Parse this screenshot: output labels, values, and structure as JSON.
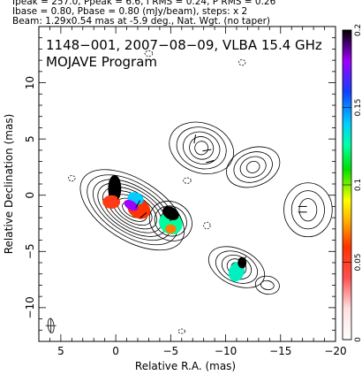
{
  "header": {
    "line1": "Ipeak = 257.0, Ppeak = 6.6, I RMS = 0.24, P RMS = 0.26",
    "line2": "Ibase = 0.80, Pbase = 0.80 (mJy/beam), steps: x 2",
    "line3": "Beam: 1.29x0.54 mas at -5.9 deg., Nat. Wgt. (no taper)"
  },
  "plot": {
    "title_line1": "1148−001, 2007−08−09, VLBA 15.4 GHz",
    "title_line2": "MOJAVE Program"
  },
  "chart_data": {
    "type": "contour",
    "xlabel": "Relative R.A. (mas)",
    "ylabel": "Relative Declination (mas)",
    "xlim": [
      7,
      -20
    ],
    "ylim": [
      -13,
      15
    ],
    "x_ticks": [
      {
        "v": 5,
        "label": "5"
      },
      {
        "v": 0,
        "label": "0"
      },
      {
        "v": -5,
        "label": "−5"
      },
      {
        "v": -10,
        "label": "−10"
      },
      {
        "v": -15,
        "label": "−15"
      },
      {
        "v": -20,
        "label": "−20"
      }
    ],
    "y_ticks": [
      {
        "v": 10,
        "label": "10"
      },
      {
        "v": 5,
        "label": "5"
      },
      {
        "v": 0,
        "label": "0"
      },
      {
        "v": -5,
        "label": "−5"
      },
      {
        "v": -10,
        "label": "−10"
      }
    ],
    "colorbar": {
      "min": 0,
      "max": 0.2,
      "ticks": [
        {
          "v": 0,
          "label": "0"
        },
        {
          "v": 0.05,
          "label": "0.05"
        },
        {
          "v": 0.1,
          "label": "0.1"
        },
        {
          "v": 0.15,
          "label": "0.15"
        },
        {
          "v": 0.2,
          "label": "0.2"
        }
      ]
    },
    "contour_groups": [
      {
        "x": -1.5,
        "y": -1.3,
        "rx": [
          1.0,
          1.5,
          2.0,
          2.5,
          3.0,
          3.5,
          4.0,
          4.6,
          5.3
        ],
        "ry": [
          0.55,
          0.8,
          1.05,
          1.3,
          1.55,
          1.8,
          2.05,
          2.35,
          2.7
        ],
        "angle": 32
      },
      {
        "x": -5.0,
        "y": -2.3,
        "rx": [
          0.5,
          1.0,
          1.5,
          2.0
        ],
        "ry": [
          0.5,
          0.9,
          1.3,
          1.7
        ],
        "angle": 30
      },
      {
        "x": -7.8,
        "y": 4.2,
        "rx": [
          0.6,
          1.1,
          1.7,
          2.3,
          3.0
        ],
        "ry": [
          0.6,
          1.0,
          1.4,
          1.8,
          2.2
        ],
        "angle": 20
      },
      {
        "x": -12.5,
        "y": 2.5,
        "rx": [
          0.6,
          1.2,
          1.8,
          2.5
        ],
        "ry": [
          0.5,
          0.9,
          1.3,
          1.7
        ],
        "angle": -20
      },
      {
        "x": -11.0,
        "y": -6.4,
        "rx": [
          0.5,
          0.9,
          1.4,
          2.0,
          2.7
        ],
        "ry": [
          0.4,
          0.7,
          1.0,
          1.3,
          1.6
        ],
        "angle": 25
      },
      {
        "x": -17.5,
        "y": -1.3,
        "rx": [
          0.8,
          1.5,
          2.2
        ],
        "ry": [
          1.0,
          1.7,
          2.4
        ],
        "angle": 0
      },
      {
        "x": -13.8,
        "y": -8.0,
        "rx": [
          0.6,
          1.1
        ],
        "ry": [
          0.4,
          0.8
        ],
        "angle": 10
      }
    ],
    "dashed_contours": [
      {
        "x": -3.0,
        "y": 12.6,
        "rx": 0.35,
        "ry": 0.25
      },
      {
        "x": -11.5,
        "y": 11.8,
        "rx": 0.3,
        "ry": 0.25
      },
      {
        "x": -6.5,
        "y": 1.3,
        "rx": 0.35,
        "ry": 0.25
      },
      {
        "x": 4.0,
        "y": 1.5,
        "rx": 0.3,
        "ry": 0.25
      },
      {
        "x": -8.3,
        "y": -2.7,
        "rx": 0.3,
        "ry": 0.3
      },
      {
        "x": -6.0,
        "y": -12.1,
        "rx": 0.3,
        "ry": 0.2
      }
    ],
    "polarization_blobs": [
      {
        "x": 0.1,
        "y": 0.6,
        "rx": 0.6,
        "ry": 1.2,
        "angle": 0,
        "value": 0.2
      },
      {
        "x": 0.4,
        "y": -0.6,
        "rx": 0.8,
        "ry": 0.6,
        "angle": 0,
        "value": 0.055
      },
      {
        "x": -1.8,
        "y": -0.3,
        "rx": 0.75,
        "ry": 0.55,
        "angle": 20,
        "value": 0.14
      },
      {
        "x": -2.1,
        "y": -1.2,
        "rx": 1.1,
        "ry": 0.85,
        "angle": 30,
        "value": 0.06
      },
      {
        "x": -1.4,
        "y": -0.9,
        "rx": 0.7,
        "ry": 0.4,
        "angle": 30,
        "value": 0.18
      },
      {
        "x": -5.0,
        "y": -1.6,
        "rx": 0.8,
        "ry": 0.55,
        "angle": 30,
        "value": 0.2
      },
      {
        "x": -5.0,
        "y": -2.5,
        "rx": 1.1,
        "ry": 0.95,
        "angle": 30,
        "value": 0.125
      },
      {
        "x": -5.0,
        "y": -3.0,
        "rx": 0.5,
        "ry": 0.4,
        "angle": 0,
        "value": 0.07
      },
      {
        "x": -11.5,
        "y": -6.0,
        "rx": 0.4,
        "ry": 0.5,
        "angle": 0,
        "value": 0.2
      },
      {
        "x": -11.0,
        "y": -6.8,
        "rx": 0.7,
        "ry": 0.9,
        "angle": 20,
        "value": 0.13
      }
    ],
    "evpa_ticks": [
      {
        "x": 0.0,
        "y": 1.0,
        "angle": 80
      },
      {
        "x": -0.3,
        "y": 0.0,
        "angle": 70
      },
      {
        "x": -2.0,
        "y": -0.8,
        "angle": 60
      },
      {
        "x": -2.5,
        "y": -1.8,
        "angle": 40
      },
      {
        "x": -5.2,
        "y": -2.0,
        "angle": 50
      },
      {
        "x": -7.2,
        "y": 5.0,
        "angle": 80
      },
      {
        "x": -8.3,
        "y": 4.0,
        "angle": 10
      },
      {
        "x": -8.6,
        "y": 3.0,
        "angle": 15
      },
      {
        "x": -11.7,
        "y": -5.8,
        "angle": 70
      },
      {
        "x": -17.0,
        "y": -1.0,
        "angle": 0
      },
      {
        "x": -17.0,
        "y": -1.5,
        "angle": 0
      }
    ],
    "beam": {
      "x": 5.9,
      "y": -11.6,
      "major": 1.29,
      "minor": 0.54,
      "pa": -5.9
    }
  }
}
